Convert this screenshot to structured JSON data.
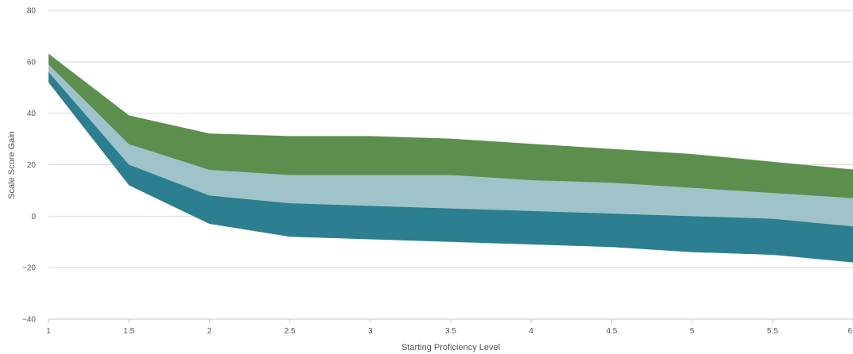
{
  "chart_data": {
    "type": "area",
    "xlabel": "Starting Proficiency Level",
    "ylabel": "Scale Score Gain",
    "x": [
      1,
      1.5,
      2,
      2.5,
      3,
      3.5,
      4,
      4.5,
      5,
      5.5,
      6
    ],
    "xlim": [
      1,
      6
    ],
    "ylim": [
      -40,
      80
    ],
    "y_ticks": [
      -40,
      -20,
      0,
      20,
      40,
      60,
      80
    ],
    "x_ticks": [
      "1",
      "1.5",
      "2",
      "2.5",
      "3",
      "3.5",
      "4",
      "4.5",
      "5",
      "5.5",
      "6"
    ],
    "grid": true,
    "bands": [
      {
        "lower": [
          52,
          12,
          -3,
          -8,
          -9,
          -10,
          -11,
          -12,
          -14,
          -15,
          -18
        ],
        "upper": [
          56,
          20,
          8,
          5,
          4,
          3,
          2,
          1,
          0,
          -1,
          -4
        ],
        "color": "#2b7f91"
      },
      {
        "lower": [
          56,
          20,
          8,
          5,
          4,
          3,
          2,
          1,
          0,
          -1,
          -4
        ],
        "upper": [
          59,
          28,
          18,
          16,
          16,
          16,
          14,
          13,
          11,
          9,
          7
        ],
        "color": "#9fc3c9"
      },
      {
        "lower": [
          59,
          28,
          18,
          16,
          16,
          16,
          14,
          13,
          11,
          9,
          7
        ],
        "upper": [
          63,
          39,
          32,
          31,
          31,
          30,
          28,
          26,
          24,
          21,
          18
        ],
        "color": "#5c8f4d"
      }
    ]
  }
}
